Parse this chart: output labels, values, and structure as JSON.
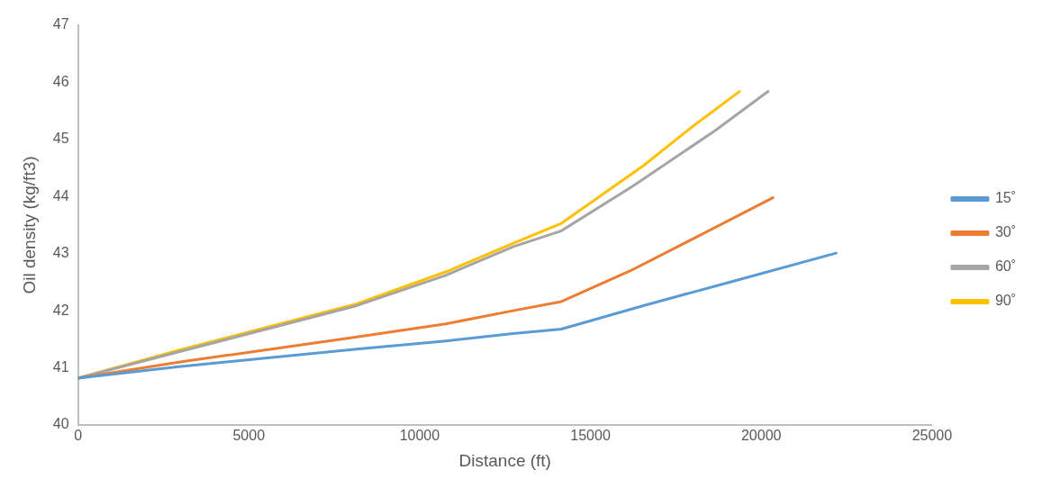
{
  "chart_data": {
    "type": "line",
    "xlabel": "Distance (ft)",
    "ylabel": "Oil density (kg/ft3)",
    "xlim": [
      0,
      25000
    ],
    "xticks": [
      0,
      5000,
      10000,
      15000,
      20000,
      25000
    ],
    "ylim": [
      40,
      47
    ],
    "yticks": [
      40,
      41,
      42,
      43,
      44,
      45,
      46,
      47
    ],
    "grid": false,
    "legend": "right",
    "marker": "none",
    "line_style": "solid",
    "series": [
      {
        "name": "15˚",
        "color": "#5b9bd5",
        "x": [
          0,
          2950,
          8160,
          10760,
          12730,
          14150,
          16550,
          19070,
          22190
        ],
        "values": [
          40.82,
          41.02,
          41.33,
          41.47,
          41.6,
          41.68,
          42.09,
          42.5,
          43.01
        ]
      },
      {
        "name": "30˚",
        "color": "#ed7d31",
        "x": [
          0,
          2950,
          8160,
          10760,
          12730,
          14150,
          16170,
          18200,
          20340
        ],
        "values": [
          40.82,
          41.1,
          41.54,
          41.77,
          42.0,
          42.16,
          42.7,
          43.32,
          43.98
        ]
      },
      {
        "name": "60˚",
        "color": "#a5a5a5",
        "x": [
          0,
          2950,
          8160,
          10760,
          12730,
          14150,
          16260,
          18660,
          20200
        ],
        "values": [
          40.82,
          41.28,
          42.09,
          42.62,
          43.12,
          43.4,
          44.19,
          45.16,
          45.84
        ]
      },
      {
        "name": "90˚",
        "color": "#ffc000",
        "x": [
          0,
          2950,
          8160,
          10760,
          12730,
          14150,
          16550,
          17910,
          19360
        ],
        "values": [
          40.82,
          41.31,
          42.12,
          42.68,
          43.18,
          43.53,
          44.54,
          45.19,
          45.84
        ]
      }
    ]
  }
}
